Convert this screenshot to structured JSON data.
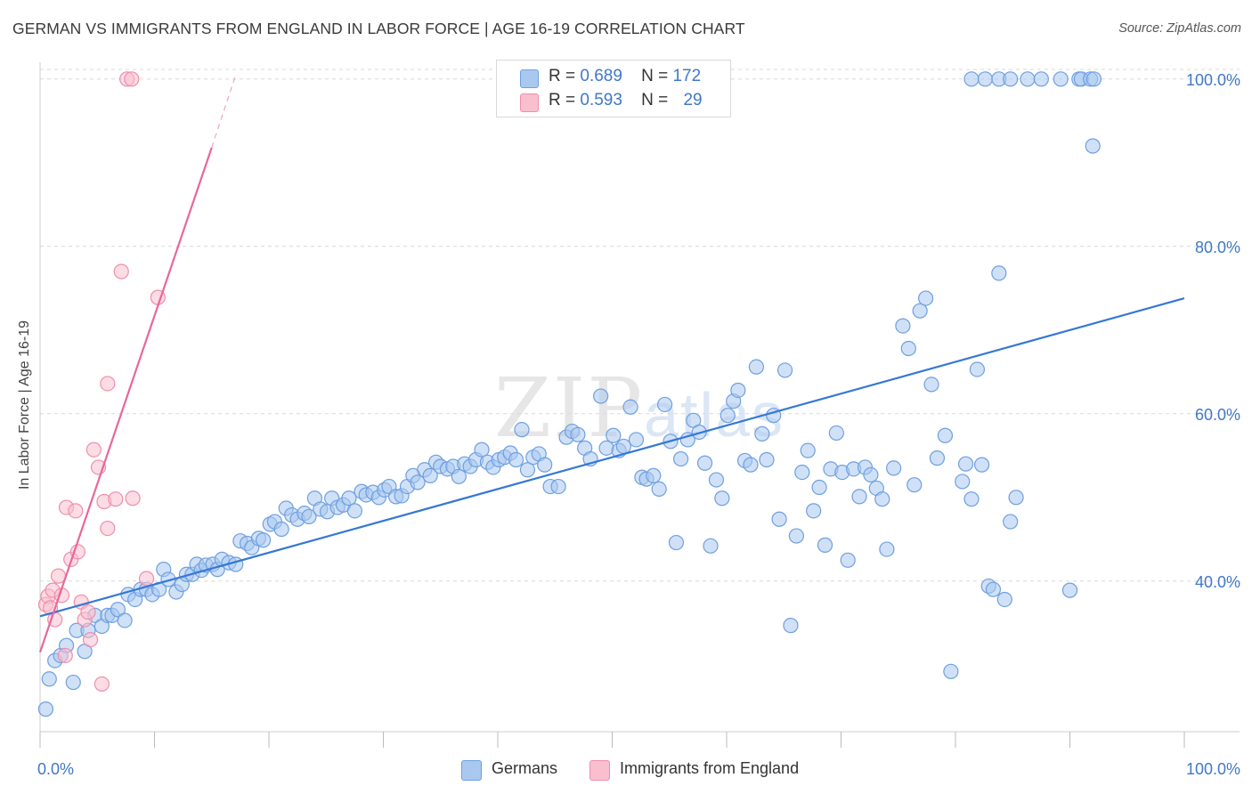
{
  "title": "GERMAN VS IMMIGRANTS FROM ENGLAND IN LABOR FORCE | AGE 16-19 CORRELATION CHART",
  "source": "Source: ZipAtlas.com",
  "watermark": {
    "zip": "ZIP",
    "atlas": "atlas"
  },
  "legend": {
    "r_label": "R =",
    "n_label": "N =",
    "rows": [
      {
        "r": "0.689",
        "n": "172",
        "color": "#a9c8f0",
        "border": "#6e9fe0"
      },
      {
        "r": "0.593",
        "n": "29",
        "color": "#f9bfcf",
        "border": "#ee8eaa"
      }
    ]
  },
  "bottom_legend": [
    {
      "label": "Germans",
      "color": "#a9c8f0",
      "border": "#6e9fe0"
    },
    {
      "label": "Immigrants from England",
      "color": "#f9bfcf",
      "border": "#ee8eaa"
    }
  ],
  "colors": {
    "blue_line": "#3478d4",
    "pink_line": "#e8679a",
    "tick_text": "#3f78c9",
    "grid": "#d8d8d8"
  },
  "chart_data": {
    "type": "scatter",
    "title": "GERMAN VS IMMIGRANTS FROM ENGLAND IN LABOR FORCE | AGE 16-19 CORRELATION CHART",
    "xlabel": "",
    "ylabel": "In Labor Force | Age 16-19",
    "xlim": [
      0,
      100
    ],
    "ylim": [
      22,
      102
    ],
    "x_tick_labels": [
      {
        "v": 0,
        "label": "0.0%"
      },
      {
        "v": 100,
        "label": "100.0%"
      }
    ],
    "y_tick_labels": [
      {
        "v": 40,
        "label": "40.0%"
      },
      {
        "v": 60,
        "label": "60.0%"
      },
      {
        "v": 80,
        "label": "80.0%"
      },
      {
        "v": 100,
        "label": "100.0%"
      }
    ],
    "grid": true,
    "series": [
      {
        "name": "Germans",
        "color": "#a9c8f0",
        "border": "#6e9fe0",
        "trend": {
          "x": [
            0,
            100
          ],
          "y": [
            35.8,
            73.8
          ],
          "style": "solid"
        },
        "points": [
          [
            0.5,
            24.7
          ],
          [
            0.8,
            28.3
          ],
          [
            1.3,
            30.5
          ],
          [
            1.8,
            31.1
          ],
          [
            2.3,
            32.3
          ],
          [
            2.9,
            27.9
          ],
          [
            3.2,
            34.1
          ],
          [
            3.9,
            31.6
          ],
          [
            4.2,
            34.1
          ],
          [
            4.8,
            35.9
          ],
          [
            5.4,
            34.6
          ],
          [
            5.9,
            35.9
          ],
          [
            6.3,
            35.9
          ],
          [
            6.8,
            36.6
          ],
          [
            7.4,
            35.3
          ],
          [
            7.7,
            38.4
          ],
          [
            8.3,
            37.8
          ],
          [
            8.8,
            39.0
          ],
          [
            9.3,
            39.0
          ],
          [
            9.8,
            38.4
          ],
          [
            10.4,
            39.0
          ],
          [
            10.8,
            41.4
          ],
          [
            11.2,
            40.2
          ],
          [
            11.9,
            38.7
          ],
          [
            12.4,
            39.6
          ],
          [
            12.8,
            40.8
          ],
          [
            13.3,
            40.8
          ],
          [
            13.7,
            42.0
          ],
          [
            14.1,
            41.3
          ],
          [
            14.5,
            41.9
          ],
          [
            15.1,
            42.0
          ],
          [
            15.5,
            41.4
          ],
          [
            15.9,
            42.6
          ],
          [
            16.5,
            42.2
          ],
          [
            17.1,
            42.0
          ],
          [
            17.5,
            44.8
          ],
          [
            18.1,
            44.5
          ],
          [
            18.5,
            44.0
          ],
          [
            19.1,
            45.1
          ],
          [
            19.5,
            44.9
          ],
          [
            20.1,
            46.8
          ],
          [
            20.5,
            47.1
          ],
          [
            21.1,
            46.2
          ],
          [
            21.5,
            48.7
          ],
          [
            22.0,
            47.9
          ],
          [
            22.5,
            47.4
          ],
          [
            23.1,
            48.1
          ],
          [
            23.5,
            47.7
          ],
          [
            24.0,
            49.9
          ],
          [
            24.5,
            48.6
          ],
          [
            25.1,
            48.3
          ],
          [
            25.5,
            49.9
          ],
          [
            26.0,
            48.8
          ],
          [
            26.5,
            49.1
          ],
          [
            27.0,
            49.9
          ],
          [
            27.5,
            48.4
          ],
          [
            28.1,
            50.7
          ],
          [
            28.5,
            50.3
          ],
          [
            29.1,
            50.6
          ],
          [
            29.6,
            50.0
          ],
          [
            30.1,
            50.9
          ],
          [
            30.5,
            51.3
          ],
          [
            31.1,
            50.1
          ],
          [
            31.6,
            50.2
          ],
          [
            32.1,
            51.3
          ],
          [
            32.6,
            52.6
          ],
          [
            33.0,
            51.8
          ],
          [
            33.6,
            53.3
          ],
          [
            34.1,
            52.6
          ],
          [
            34.6,
            54.2
          ],
          [
            35.0,
            53.7
          ],
          [
            35.6,
            53.4
          ],
          [
            36.1,
            53.7
          ],
          [
            36.6,
            52.5
          ],
          [
            37.1,
            54.0
          ],
          [
            37.6,
            53.7
          ],
          [
            38.1,
            54.5
          ],
          [
            38.6,
            55.7
          ],
          [
            39.1,
            54.2
          ],
          [
            39.6,
            53.6
          ],
          [
            40.1,
            54.5
          ],
          [
            40.6,
            54.8
          ],
          [
            41.1,
            55.3
          ],
          [
            41.6,
            54.5
          ],
          [
            42.1,
            58.1
          ],
          [
            42.6,
            53.3
          ],
          [
            43.1,
            54.8
          ],
          [
            43.6,
            55.2
          ],
          [
            44.1,
            53.9
          ],
          [
            44.6,
            51.3
          ],
          [
            45.3,
            51.3
          ],
          [
            46.0,
            57.2
          ],
          [
            46.5,
            57.9
          ],
          [
            47.0,
            57.5
          ],
          [
            47.6,
            55.9
          ],
          [
            48.1,
            54.6
          ],
          [
            49.0,
            62.1
          ],
          [
            49.5,
            55.9
          ],
          [
            50.1,
            57.4
          ],
          [
            50.6,
            55.6
          ],
          [
            51.0,
            56.1
          ],
          [
            51.6,
            60.8
          ],
          [
            52.1,
            56.9
          ],
          [
            52.6,
            52.4
          ],
          [
            53.0,
            52.2
          ],
          [
            53.6,
            52.6
          ],
          [
            54.1,
            51.0
          ],
          [
            54.6,
            61.1
          ],
          [
            55.1,
            56.7
          ],
          [
            55.6,
            44.6
          ],
          [
            56.0,
            54.6
          ],
          [
            56.6,
            56.9
          ],
          [
            57.1,
            59.2
          ],
          [
            57.6,
            57.8
          ],
          [
            58.1,
            54.1
          ],
          [
            58.6,
            44.2
          ],
          [
            59.1,
            52.1
          ],
          [
            59.6,
            49.9
          ],
          [
            60.1,
            59.8
          ],
          [
            60.6,
            61.5
          ],
          [
            61.0,
            62.8
          ],
          [
            61.6,
            54.4
          ],
          [
            62.1,
            53.9
          ],
          [
            62.6,
            65.6
          ],
          [
            63.1,
            57.6
          ],
          [
            63.5,
            54.5
          ],
          [
            64.1,
            59.8
          ],
          [
            64.6,
            47.4
          ],
          [
            65.1,
            65.2
          ],
          [
            65.6,
            34.7
          ],
          [
            66.1,
            45.4
          ],
          [
            66.6,
            53.0
          ],
          [
            67.1,
            55.6
          ],
          [
            67.6,
            48.4
          ],
          [
            68.1,
            51.2
          ],
          [
            68.6,
            44.3
          ],
          [
            69.1,
            53.4
          ],
          [
            69.6,
            57.7
          ],
          [
            70.1,
            53.0
          ],
          [
            70.6,
            42.5
          ],
          [
            71.1,
            53.4
          ],
          [
            71.6,
            50.1
          ],
          [
            72.1,
            53.6
          ],
          [
            72.6,
            52.7
          ],
          [
            73.1,
            51.1
          ],
          [
            73.6,
            49.8
          ],
          [
            74.0,
            43.8
          ],
          [
            74.6,
            53.5
          ],
          [
            75.4,
            70.5
          ],
          [
            75.9,
            67.8
          ],
          [
            76.4,
            51.5
          ],
          [
            76.9,
            72.3
          ],
          [
            77.4,
            73.8
          ],
          [
            77.9,
            63.5
          ],
          [
            78.4,
            54.7
          ],
          [
            79.1,
            57.4
          ],
          [
            79.6,
            29.2
          ],
          [
            80.6,
            51.9
          ],
          [
            80.9,
            54.0
          ],
          [
            81.4,
            49.8
          ],
          [
            81.9,
            65.3
          ],
          [
            82.3,
            53.9
          ],
          [
            82.9,
            39.4
          ],
          [
            83.3,
            39.0
          ],
          [
            83.8,
            76.8
          ],
          [
            84.3,
            37.8
          ],
          [
            84.8,
            47.1
          ],
          [
            85.3,
            50.0
          ],
          [
            90.0,
            38.9
          ],
          [
            92.0,
            92.0
          ]
        ]
      },
      {
        "name": "Immigrants from England",
        "color": "#f9bfcf",
        "border": "#ee8eaa",
        "trend": {
          "x": [
            0,
            15
          ],
          "y": [
            31.5,
            91.8
          ],
          "style": "solid",
          "dashed_to": {
            "x": 17.1,
            "y": 100.5
          }
        },
        "points": [
          [
            0.5,
            37.2
          ],
          [
            0.7,
            38.2
          ],
          [
            0.9,
            36.8
          ],
          [
            1.1,
            38.9
          ],
          [
            1.3,
            35.4
          ],
          [
            1.6,
            40.6
          ],
          [
            1.9,
            38.3
          ],
          [
            2.2,
            31.1
          ],
          [
            2.3,
            48.8
          ],
          [
            2.7,
            42.6
          ],
          [
            3.1,
            48.4
          ],
          [
            3.3,
            43.5
          ],
          [
            3.6,
            37.5
          ],
          [
            3.9,
            35.4
          ],
          [
            4.2,
            36.3
          ],
          [
            4.4,
            33.0
          ],
          [
            4.7,
            55.7
          ],
          [
            5.1,
            53.6
          ],
          [
            5.4,
            27.7
          ],
          [
            5.6,
            49.5
          ],
          [
            5.9,
            46.3
          ],
          [
            6.6,
            49.8
          ],
          [
            7.1,
            77.0
          ],
          [
            7.6,
            100.0
          ],
          [
            8.0,
            100.0
          ],
          [
            8.1,
            49.9
          ],
          [
            9.3,
            40.3
          ],
          [
            10.3,
            73.9
          ],
          [
            5.9,
            63.6
          ]
        ]
      }
    ],
    "extra_points_top": [
      [
        81.4,
        100.0
      ],
      [
        82.6,
        100.0
      ],
      [
        83.8,
        100.0
      ],
      [
        84.8,
        100.0
      ],
      [
        86.3,
        100.0
      ],
      [
        87.5,
        100.0
      ],
      [
        89.2,
        100.0
      ],
      [
        90.8,
        100.0
      ],
      [
        91.0,
        100.0
      ],
      [
        91.8,
        100.0
      ],
      [
        92.1,
        100.0
      ]
    ]
  }
}
